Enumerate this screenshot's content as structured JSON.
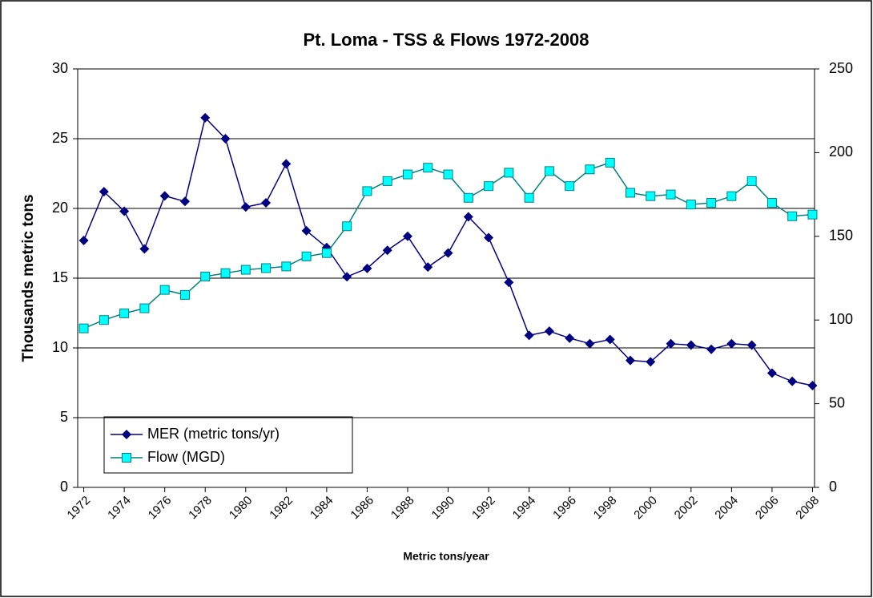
{
  "chart_data": {
    "type": "line",
    "title": "Pt. Loma - TSS & Flows 1972-2008",
    "x_label": "Metric tons/year",
    "y_label": "Thousands metric tons",
    "x": [
      1972,
      1973,
      1974,
      1975,
      1976,
      1977,
      1978,
      1979,
      1980,
      1981,
      1982,
      1983,
      1984,
      1985,
      1986,
      1987,
      1988,
      1989,
      1990,
      1991,
      1992,
      1993,
      1994,
      1995,
      1996,
      1997,
      1998,
      1999,
      2000,
      2001,
      2002,
      2003,
      2004,
      2005,
      2006,
      2007,
      2008
    ],
    "xlim": [
      1971.7,
      2008.1
    ],
    "xticks": [
      1972,
      1974,
      1976,
      1978,
      1980,
      1982,
      1984,
      1986,
      1988,
      1990,
      1992,
      1994,
      1996,
      1998,
      2000,
      2002,
      2004,
      2006,
      2008
    ],
    "ylim": [
      0,
      30
    ],
    "yticks": [
      0,
      5,
      10,
      15,
      20,
      25,
      30
    ],
    "y2lim": [
      0,
      250
    ],
    "y2ticks": [
      0,
      50,
      100,
      150,
      200,
      250
    ],
    "grid": true,
    "legend": "lower left",
    "series": [
      {
        "name": "MER (metric tons/yr)",
        "color": "#000080",
        "marker": "diamond",
        "values": [
          17.7,
          21.2,
          19.8,
          17.1,
          20.9,
          20.5,
          26.5,
          25.0,
          20.1,
          20.4,
          23.2,
          18.4,
          17.2,
          15.1,
          15.7,
          17.0,
          18.0,
          15.8,
          16.8,
          19.4,
          17.9,
          14.7,
          10.9,
          11.2,
          10.7,
          10.3,
          10.6,
          9.1,
          9.0,
          10.3,
          10.2,
          9.9,
          10.3,
          10.2,
          8.2,
          7.6,
          7.3
        ]
      },
      {
        "name": "Flow (MGD)",
        "color": "#008080",
        "marker_color": "#00ffff",
        "marker": "square",
        "axis": "y2",
        "values": [
          95,
          100,
          104,
          107,
          118,
          115,
          126,
          128,
          130,
          131,
          132,
          138,
          140,
          156,
          177,
          183,
          187,
          191,
          187,
          173,
          180,
          188,
          173,
          189,
          180,
          190,
          194,
          176,
          174,
          175,
          169,
          170,
          174,
          183,
          170,
          162,
          163
        ]
      }
    ]
  }
}
